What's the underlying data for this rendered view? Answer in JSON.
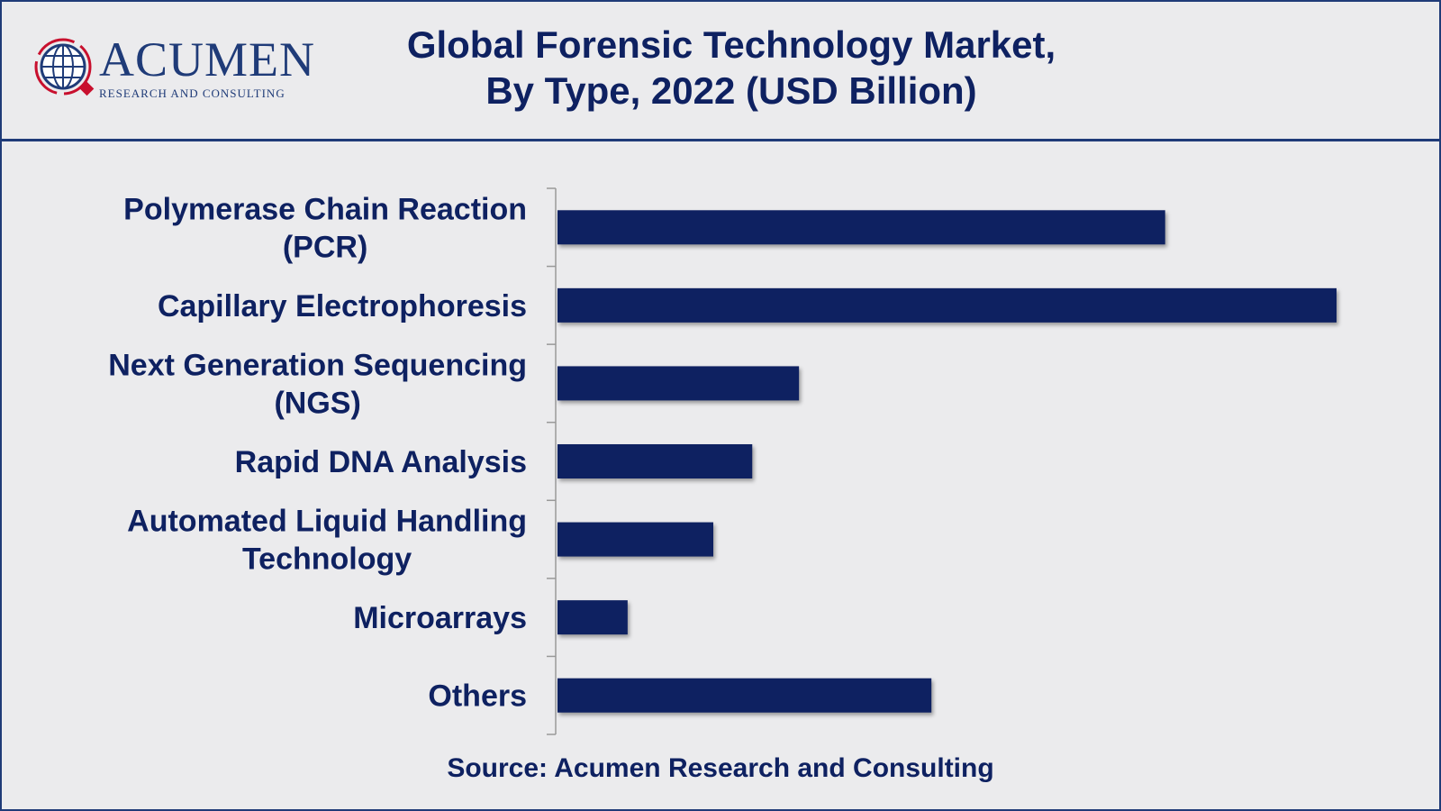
{
  "header": {
    "logo": {
      "word": "ACUMEN",
      "subtitle": "RESEARCH AND CONSULTING"
    },
    "title_line1": "Global Forensic Technology Market,",
    "title_line2": "By Type, 2022 (USD Billion)"
  },
  "source": "Source: Acumen Research and Consulting",
  "colors": {
    "bar": "#0e2161",
    "text": "#0e2161",
    "frame": "#1f3b78",
    "background": "#ebebed",
    "axis": "#999999"
  },
  "chart_data": {
    "type": "bar",
    "orientation": "horizontal",
    "title": "Global Forensic Technology Market, By Type, 2022 (USD Billion)",
    "categories": [
      [
        "Polymerase Chain Reaction",
        "(PCR)"
      ],
      [
        "Capillary Electrophoresis"
      ],
      [
        "Next Generation Sequencing",
        "(NGS)"
      ],
      [
        "Rapid DNA Analysis"
      ],
      [
        "Automated Liquid Handling",
        "Technology"
      ],
      [
        "Microarrays"
      ],
      [
        "Others"
      ]
    ],
    "values": [
      0.78,
      1.0,
      0.31,
      0.25,
      0.2,
      0.09,
      0.48
    ],
    "value_scale": "relative (no axis values printed)",
    "xlim": [
      0,
      1.0
    ],
    "grid": false,
    "legend": "none"
  }
}
